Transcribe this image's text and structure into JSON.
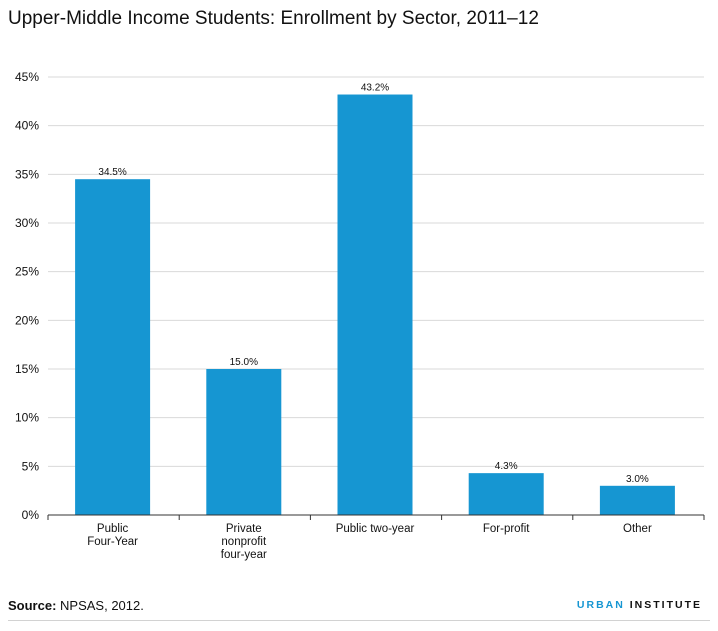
{
  "title": "Upper-Middle Income Students: Enrollment by Sector, 2011–12",
  "source_label": "Source:",
  "source_text": "NPSAS, 2012.",
  "brand": {
    "part1": "URBAN",
    "part2": "INSTITUTE"
  },
  "colors": {
    "bar": "#1696d2",
    "grid": "#d9d9d9",
    "axis": "#333333",
    "brand": "#1696d2"
  },
  "chart_data": {
    "type": "bar",
    "categories": [
      [
        "Public",
        "Four-Year"
      ],
      [
        "Private",
        "nonprofit",
        "four-year"
      ],
      [
        "Public two-year"
      ],
      [
        "For-profit"
      ],
      [
        "Other"
      ]
    ],
    "values": [
      34.5,
      15.0,
      43.2,
      4.3,
      3.0
    ],
    "value_labels": [
      "34.5%",
      "15.0%",
      "43.2%",
      "4.3%",
      "3.0%"
    ],
    "yticks": [
      0,
      5,
      10,
      15,
      20,
      25,
      30,
      35,
      40,
      45
    ],
    "ytick_labels": [
      "0%",
      "5%",
      "10%",
      "15%",
      "20%",
      "25%",
      "30%",
      "35%",
      "40%",
      "45%"
    ],
    "ylim": [
      0,
      45
    ],
    "grid": true
  }
}
